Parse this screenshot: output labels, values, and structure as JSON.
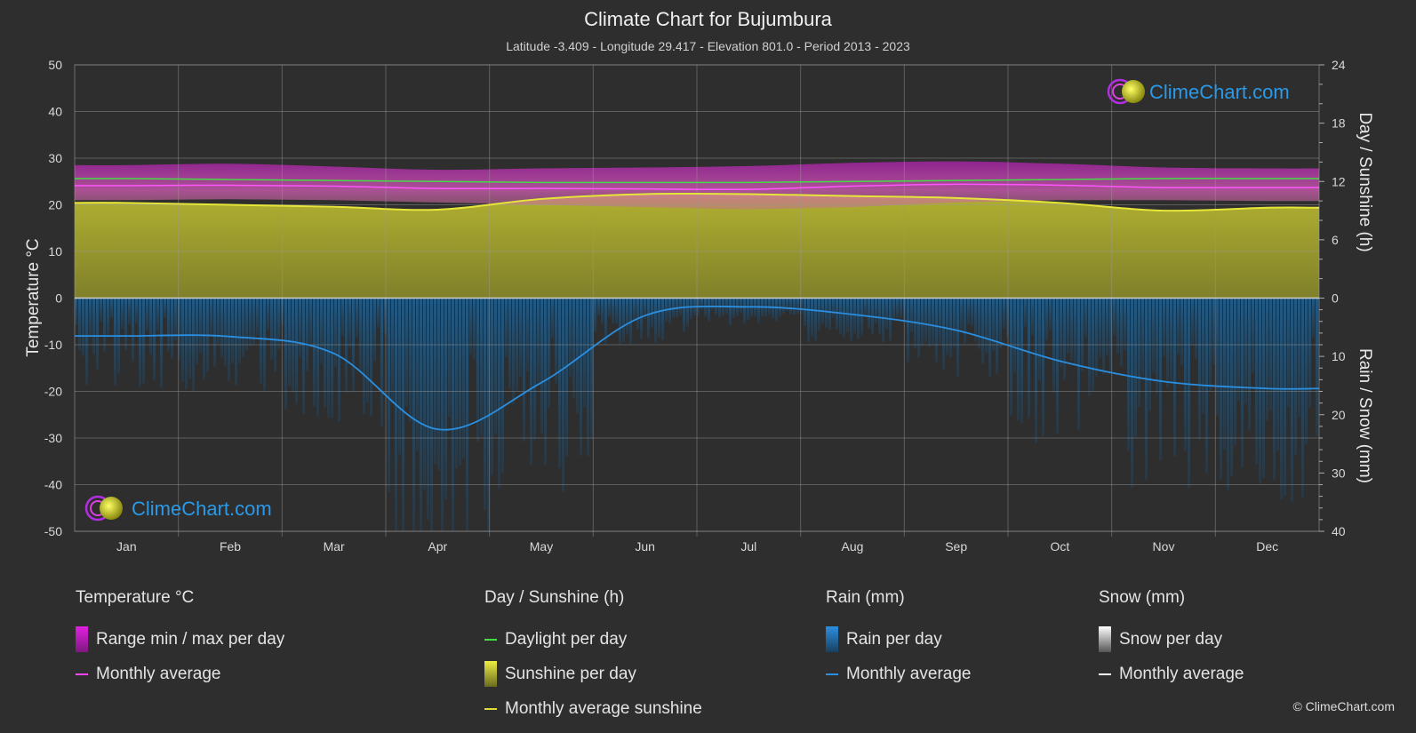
{
  "header": {
    "title": "Climate Chart for Bujumbura",
    "subtitle": "Latitude -3.409 - Longitude 29.417 - Elevation 801.0 - Period 2013 - 2023"
  },
  "chart_data": {
    "type": "line",
    "categories": [
      "Jan",
      "Feb",
      "Mar",
      "Apr",
      "May",
      "Jun",
      "Jul",
      "Aug",
      "Sep",
      "Oct",
      "Nov",
      "Dec"
    ],
    "y_left": {
      "label": "Temperature °C",
      "range": [
        -50,
        50
      ],
      "ticks": [
        50,
        40,
        30,
        20,
        10,
        0,
        -10,
        -20,
        -30,
        -40,
        -50
      ]
    },
    "y_right_top": {
      "label": "Day / Sunshine (h)",
      "range": [
        0,
        24
      ],
      "ticks": [
        24,
        18,
        12,
        6,
        0
      ]
    },
    "y_right_bottom": {
      "label": "Rain / Snow (mm)",
      "range": [
        0,
        40
      ],
      "ticks": [
        0,
        10,
        20,
        30,
        40
      ]
    },
    "series": [
      {
        "name": "Daylight per day",
        "unit": "h",
        "color": "#44dd44",
        "values": [
          12.3,
          12.2,
          12.1,
          12.0,
          11.9,
          11.9,
          11.9,
          12.0,
          12.1,
          12.2,
          12.3,
          12.3
        ]
      },
      {
        "name": "Monthly average sunshine",
        "unit": "h",
        "color": "#dddd33",
        "values": [
          9.8,
          9.6,
          9.4,
          9.1,
          10.2,
          10.7,
          10.7,
          10.5,
          10.3,
          9.8,
          9.0,
          9.3
        ]
      },
      {
        "name": "Temperature monthly average",
        "unit": "°C",
        "color": "#ff44ff",
        "values": [
          24.1,
          24.2,
          24.0,
          23.5,
          23.5,
          23.4,
          23.3,
          24.0,
          24.4,
          24.2,
          23.7,
          23.7
        ]
      },
      {
        "name": "Temperature max per day",
        "unit": "°C",
        "values": [
          28.5,
          28.8,
          28.2,
          27.5,
          27.8,
          28.0,
          28.3,
          29.0,
          29.3,
          28.8,
          28.0,
          27.8
        ]
      },
      {
        "name": "Temperature min per day",
        "unit": "°C",
        "values": [
          21.0,
          21.2,
          21.0,
          20.5,
          20.0,
          19.5,
          19.0,
          19.5,
          20.5,
          21.0,
          21.0,
          20.8
        ]
      },
      {
        "name": "Rain monthly average",
        "unit": "mm",
        "color": "#2a8fe0",
        "values": [
          6.5,
          6.6,
          9.5,
          22.5,
          14.5,
          3.0,
          1.5,
          2.8,
          5.5,
          10.8,
          14.3,
          15.5
        ]
      },
      {
        "name": "Snow monthly average",
        "unit": "mm",
        "color": "#ffffff",
        "values": [
          0,
          0,
          0,
          0,
          0,
          0,
          0,
          0,
          0,
          0,
          0,
          0
        ]
      }
    ],
    "grid": true
  },
  "logo": {
    "text": "ClimeChart.com"
  },
  "legend": {
    "groups": [
      {
        "title": "Temperature °C",
        "items": [
          {
            "label": "Range min / max per day",
            "swatch": "box",
            "color": "#e020e0"
          },
          {
            "label": "Monthly average",
            "swatch": "line",
            "color": "#ff44ff"
          }
        ]
      },
      {
        "title": "Day / Sunshine (h)",
        "items": [
          {
            "label": "Daylight per day",
            "swatch": "line",
            "color": "#44dd44"
          },
          {
            "label": "Sunshine per day",
            "swatch": "box",
            "color": "#c8c832"
          },
          {
            "label": "Monthly average sunshine",
            "swatch": "line",
            "color": "#dddd33"
          }
        ]
      },
      {
        "title": "Rain (mm)",
        "items": [
          {
            "label": "Rain per day",
            "swatch": "box",
            "color": "#2a8fe0"
          },
          {
            "label": "Monthly average",
            "swatch": "line",
            "color": "#2a8fe0"
          }
        ]
      },
      {
        "title": "Snow (mm)",
        "items": [
          {
            "label": "Snow per day",
            "swatch": "box",
            "color": "#dddddd"
          },
          {
            "label": "Monthly average",
            "swatch": "line",
            "color": "#ffffff"
          }
        ]
      }
    ]
  },
  "copyright": "© ClimeChart.com"
}
